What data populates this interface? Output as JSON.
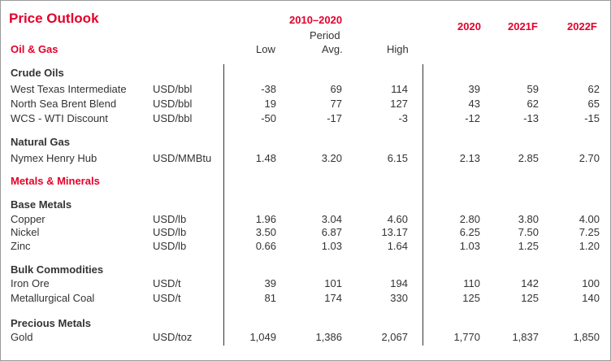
{
  "title": "Price Outlook",
  "header": {
    "period_range": "2010–2020",
    "period_label": "Period",
    "low": "Low",
    "avg": "Avg.",
    "high": "High",
    "y2020": "2020",
    "y2021": "2021F",
    "y2022": "2022F"
  },
  "sections": {
    "oil_gas": "Oil & Gas",
    "metals": "Metals & Minerals"
  },
  "groups": {
    "crude": "Crude Oils",
    "natgas": "Natural Gas",
    "base": "Base Metals",
    "bulk": "Bulk Commodities",
    "precious": "Precious Metals"
  },
  "rows": [
    {
      "name": "West Texas Intermediate",
      "unit": "USD/bbl",
      "low": "-38",
      "avg": "69",
      "high": "114",
      "y2020": "39",
      "y2021": "59",
      "y2022": "62"
    },
    {
      "name": "North Sea Brent Blend",
      "unit": "USD/bbl",
      "low": "19",
      "avg": "77",
      "high": "127",
      "y2020": "43",
      "y2021": "62",
      "y2022": "65"
    },
    {
      "name": "WCS - WTI Discount",
      "unit": "USD/bbl",
      "low": "-50",
      "avg": "-17",
      "high": "-3",
      "y2020": "-12",
      "y2021": "-13",
      "y2022": "-15"
    },
    {
      "name": "Nymex Henry Hub",
      "unit": "USD/MMBtu",
      "low": "1.48",
      "avg": "3.20",
      "high": "6.15",
      "y2020": "2.13",
      "y2021": "2.85",
      "y2022": "2.70"
    },
    {
      "name": "Copper",
      "unit": "USD/lb",
      "low": "1.96",
      "avg": "3.04",
      "high": "4.60",
      "y2020": "2.80",
      "y2021": "3.80",
      "y2022": "4.00"
    },
    {
      "name": "Nickel",
      "unit": "USD/lb",
      "low": "3.50",
      "avg": "6.87",
      "high": "13.17",
      "y2020": "6.25",
      "y2021": "7.50",
      "y2022": "7.25"
    },
    {
      "name": "Zinc",
      "unit": "USD/lb",
      "low": "0.66",
      "avg": "1.03",
      "high": "1.64",
      "y2020": "1.03",
      "y2021": "1.25",
      "y2022": "1.20"
    },
    {
      "name": "Iron Ore",
      "unit": "USD/t",
      "low": "39",
      "avg": "101",
      "high": "194",
      "y2020": "110",
      "y2021": "142",
      "y2022": "100"
    },
    {
      "name": "Metallurgical Coal",
      "unit": "USD/t",
      "low": "81",
      "avg": "174",
      "high": "330",
      "y2020": "125",
      "y2021": "125",
      "y2022": "140"
    },
    {
      "name": "Gold",
      "unit": "USD/toz",
      "low": "1,049",
      "avg": "1,386",
      "high": "2,067",
      "y2020": "1,770",
      "y2021": "1,837",
      "y2022": "1,850"
    }
  ]
}
